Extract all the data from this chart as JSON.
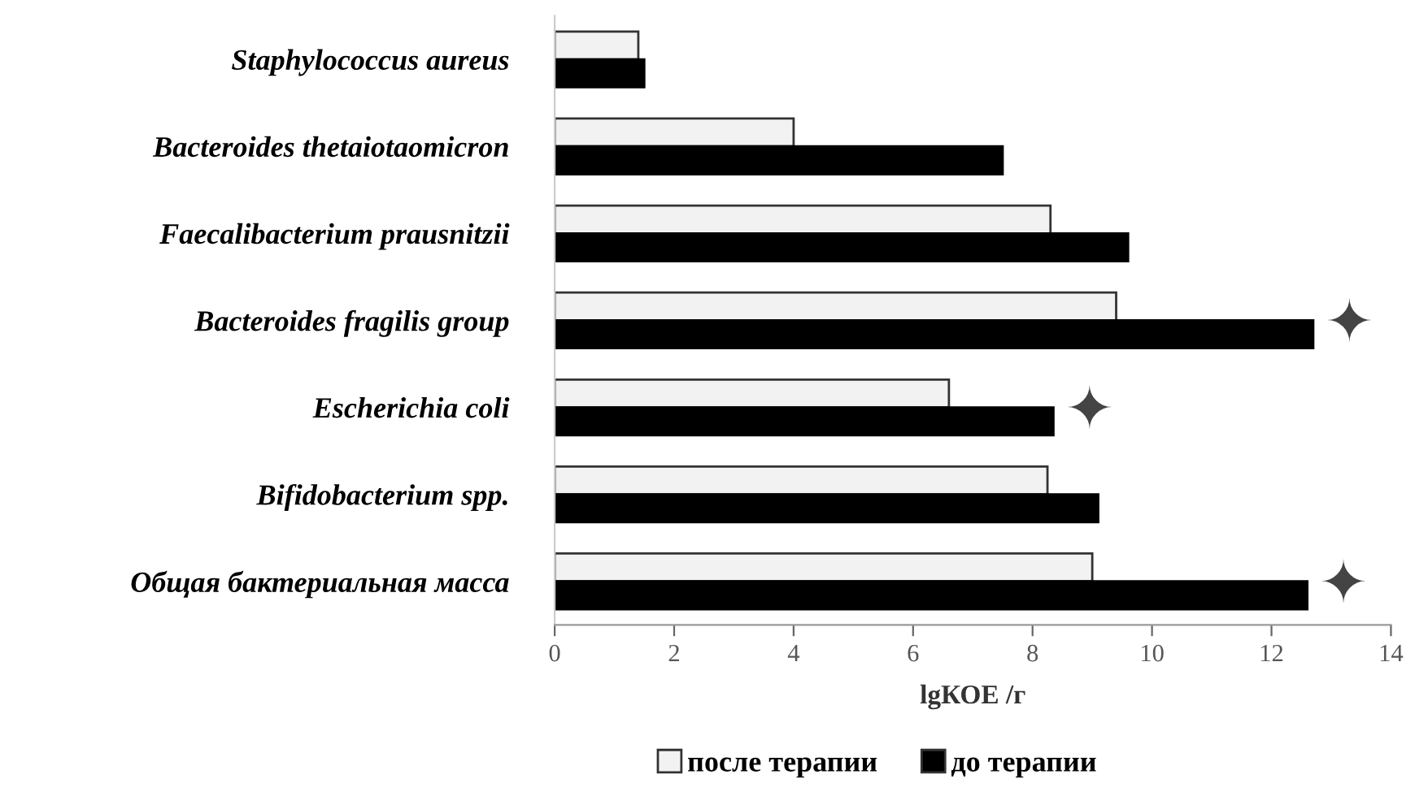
{
  "chart_data": {
    "type": "bar",
    "orientation": "horizontal",
    "xlabel": "lgКОЕ /г",
    "categories": [
      "Staphylococcus aureus",
      "Bacteroides thetaiotaomicron",
      "Faecalibacterium prausnitzii",
      "Bacteroides fragilis group",
      "Escherichia coli",
      "Bifidobacterium spp.",
      "Общая бактериальная масса"
    ],
    "series": [
      {
        "name": "после терапии",
        "color": "#f2f2f2",
        "values": [
          1.4,
          4.0,
          8.3,
          9.4,
          6.6,
          8.25,
          9.0
        ]
      },
      {
        "name": "до терапии",
        "color": "#000000",
        "values": [
          1.5,
          7.5,
          9.6,
          12.7,
          8.35,
          9.1,
          12.6
        ]
      }
    ],
    "xlim": [
      0,
      14
    ],
    "xticks": [
      0,
      2,
      4,
      6,
      8,
      10,
      12,
      14
    ],
    "grid": false,
    "legend": "bottom",
    "annotations": [
      {
        "text": "✦",
        "x": 12.7,
        "y": "Bacteroides fragilis group"
      },
      {
        "text": "✦",
        "x": 8.35,
        "y": "Escherichia coli"
      },
      {
        "text": "✦",
        "x": 12.6,
        "y": "Общая бактериальная масса"
      }
    ]
  }
}
